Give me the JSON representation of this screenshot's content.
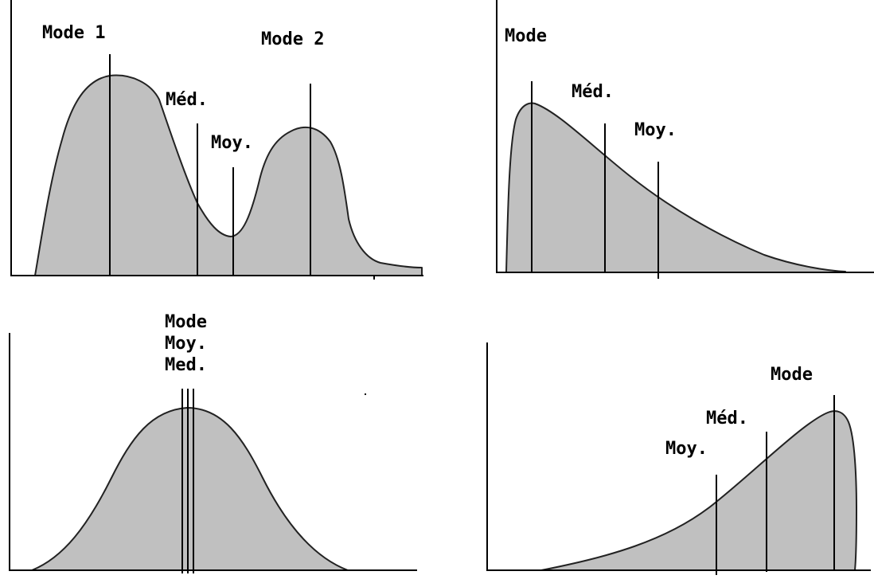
{
  "panels": {
    "bimodal": {
      "labels": {
        "mode1": "Mode 1",
        "mode2": "Mode 2",
        "median": "Méd.",
        "mean": "Moy."
      }
    },
    "right_skewed": {
      "labels": {
        "mode": "Mode",
        "median": "Méd.",
        "mean": "Moy."
      }
    },
    "symmetric": {
      "labels": {
        "mode": "Mode",
        "mean": "Moy.",
        "median": "Med."
      }
    },
    "left_skewed": {
      "labels": {
        "mode": "Mode",
        "median": "Méd.",
        "mean": "Moy."
      }
    }
  },
  "colors": {
    "fill": "#c0c0c0",
    "stroke": "#222222",
    "axis": "#000000"
  }
}
